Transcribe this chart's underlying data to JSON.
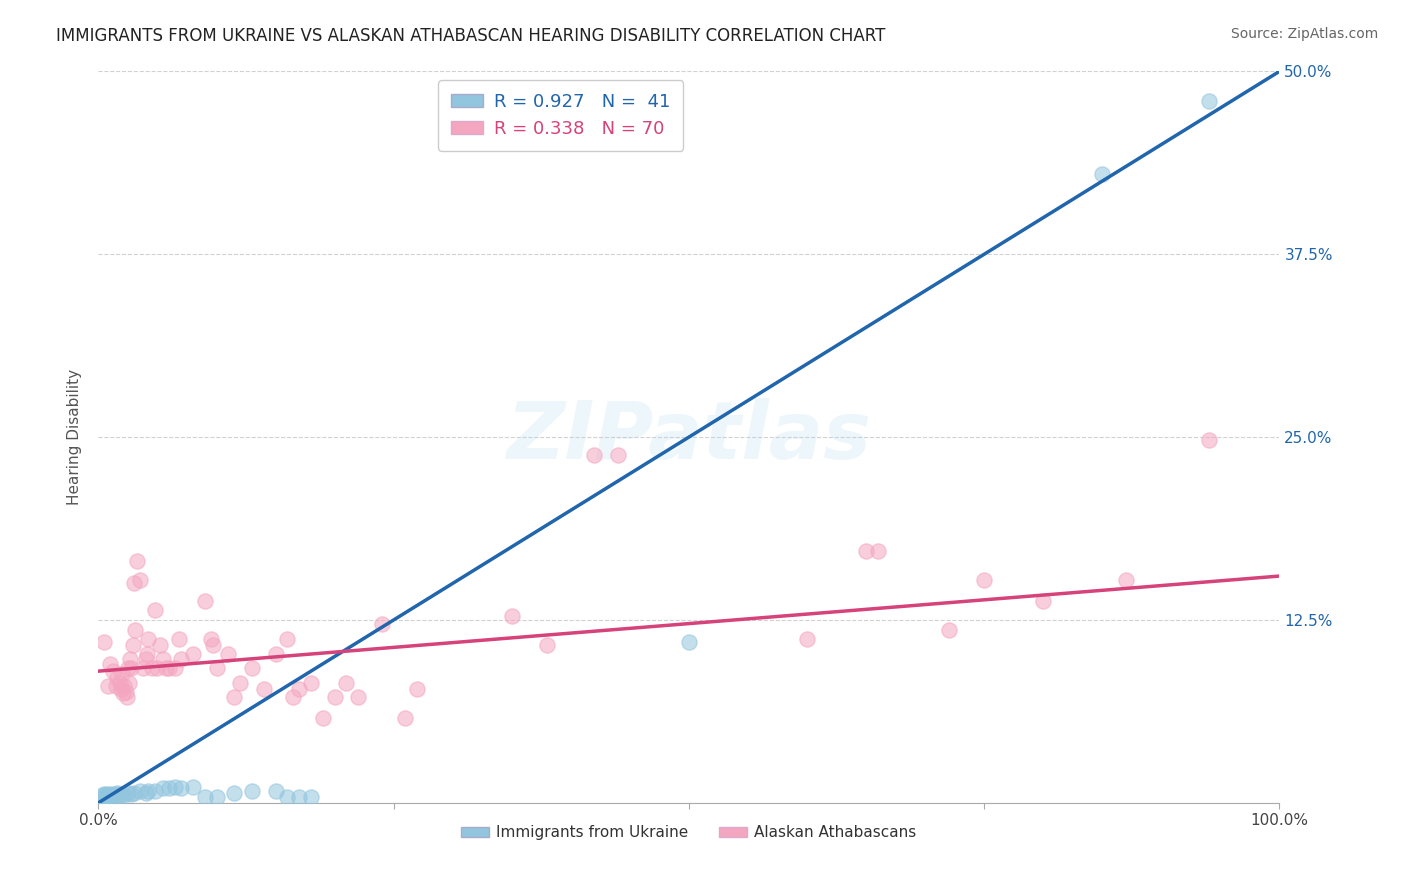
{
  "title": "IMMIGRANTS FROM UKRAINE VS ALASKAN ATHABASCAN HEARING DISABILITY CORRELATION CHART",
  "source": "Source: ZipAtlas.com",
  "ylabel": "Hearing Disability",
  "xlim": [
    0,
    1.0
  ],
  "ylim": [
    0,
    0.5
  ],
  "x_ticks": [
    0.0,
    0.25,
    0.5,
    0.75,
    1.0
  ],
  "x_tick_labels": [
    "0.0%",
    "",
    "",
    "",
    "100.0%"
  ],
  "y_ticks": [
    0.0,
    0.125,
    0.25,
    0.375,
    0.5
  ],
  "y_tick_labels": [
    "",
    "12.5%",
    "25.0%",
    "37.5%",
    "50.0%"
  ],
  "legend1_label": "R = 0.927   N =  41",
  "legend2_label": "R = 0.338   N = 70",
  "legend_bottom_label1": "Immigrants from Ukraine",
  "legend_bottom_label2": "Alaskan Athabascans",
  "blue_scatter_color": "#92c5de",
  "blue_line_color": "#2166ac",
  "pink_scatter_color": "#f4a6c0",
  "pink_line_color": "#d6427a",
  "watermark": "ZIPatlas",
  "ukraine_points": [
    [
      0.003,
      0.003
    ],
    [
      0.004,
      0.005
    ],
    [
      0.005,
      0.004
    ],
    [
      0.005,
      0.006
    ],
    [
      0.006,
      0.003
    ],
    [
      0.007,
      0.004
    ],
    [
      0.007,
      0.006
    ],
    [
      0.008,
      0.005
    ],
    [
      0.009,
      0.004
    ],
    [
      0.01,
      0.005
    ],
    [
      0.011,
      0.006
    ],
    [
      0.012,
      0.005
    ],
    [
      0.013,
      0.004
    ],
    [
      0.015,
      0.006
    ],
    [
      0.016,
      0.007
    ],
    [
      0.018,
      0.005
    ],
    [
      0.02,
      0.006
    ],
    [
      0.022,
      0.005
    ],
    [
      0.025,
      0.007
    ],
    [
      0.028,
      0.006
    ],
    [
      0.03,
      0.007
    ],
    [
      0.035,
      0.008
    ],
    [
      0.04,
      0.007
    ],
    [
      0.042,
      0.008
    ],
    [
      0.048,
      0.008
    ],
    [
      0.055,
      0.01
    ],
    [
      0.06,
      0.01
    ],
    [
      0.065,
      0.011
    ],
    [
      0.07,
      0.01
    ],
    [
      0.08,
      0.011
    ],
    [
      0.09,
      0.004
    ],
    [
      0.1,
      0.004
    ],
    [
      0.115,
      0.007
    ],
    [
      0.13,
      0.008
    ],
    [
      0.15,
      0.008
    ],
    [
      0.16,
      0.004
    ],
    [
      0.17,
      0.004
    ],
    [
      0.18,
      0.004
    ],
    [
      0.5,
      0.11
    ],
    [
      0.85,
      0.43
    ],
    [
      0.94,
      0.48
    ]
  ],
  "athabascan_points": [
    [
      0.005,
      0.11
    ],
    [
      0.008,
      0.08
    ],
    [
      0.01,
      0.095
    ],
    [
      0.012,
      0.09
    ],
    [
      0.015,
      0.08
    ],
    [
      0.016,
      0.085
    ],
    [
      0.018,
      0.082
    ],
    [
      0.019,
      0.078
    ],
    [
      0.02,
      0.088
    ],
    [
      0.021,
      0.075
    ],
    [
      0.022,
      0.08
    ],
    [
      0.023,
      0.076
    ],
    [
      0.024,
      0.072
    ],
    [
      0.025,
      0.092
    ],
    [
      0.026,
      0.082
    ],
    [
      0.027,
      0.098
    ],
    [
      0.028,
      0.092
    ],
    [
      0.029,
      0.108
    ],
    [
      0.03,
      0.15
    ],
    [
      0.031,
      0.118
    ],
    [
      0.033,
      0.165
    ],
    [
      0.035,
      0.152
    ],
    [
      0.038,
      0.092
    ],
    [
      0.04,
      0.098
    ],
    [
      0.041,
      0.102
    ],
    [
      0.042,
      0.112
    ],
    [
      0.045,
      0.092
    ],
    [
      0.048,
      0.132
    ],
    [
      0.05,
      0.092
    ],
    [
      0.052,
      0.108
    ],
    [
      0.055,
      0.098
    ],
    [
      0.057,
      0.092
    ],
    [
      0.06,
      0.092
    ],
    [
      0.065,
      0.092
    ],
    [
      0.068,
      0.112
    ],
    [
      0.07,
      0.098
    ],
    [
      0.08,
      0.102
    ],
    [
      0.09,
      0.138
    ],
    [
      0.095,
      0.112
    ],
    [
      0.097,
      0.108
    ],
    [
      0.1,
      0.092
    ],
    [
      0.11,
      0.102
    ],
    [
      0.115,
      0.072
    ],
    [
      0.12,
      0.082
    ],
    [
      0.13,
      0.092
    ],
    [
      0.14,
      0.078
    ],
    [
      0.15,
      0.102
    ],
    [
      0.16,
      0.112
    ],
    [
      0.165,
      0.072
    ],
    [
      0.17,
      0.078
    ],
    [
      0.18,
      0.082
    ],
    [
      0.19,
      0.058
    ],
    [
      0.2,
      0.072
    ],
    [
      0.21,
      0.082
    ],
    [
      0.22,
      0.072
    ],
    [
      0.24,
      0.122
    ],
    [
      0.26,
      0.058
    ],
    [
      0.27,
      0.078
    ],
    [
      0.35,
      0.128
    ],
    [
      0.38,
      0.108
    ],
    [
      0.42,
      0.238
    ],
    [
      0.44,
      0.238
    ],
    [
      0.6,
      0.112
    ],
    [
      0.65,
      0.172
    ],
    [
      0.66,
      0.172
    ],
    [
      0.72,
      0.118
    ],
    [
      0.75,
      0.152
    ],
    [
      0.8,
      0.138
    ],
    [
      0.87,
      0.152
    ],
    [
      0.94,
      0.248
    ]
  ],
  "ukraine_line": [
    0.0,
    0.5
  ],
  "athabascan_line": [
    0.09,
    0.155
  ]
}
